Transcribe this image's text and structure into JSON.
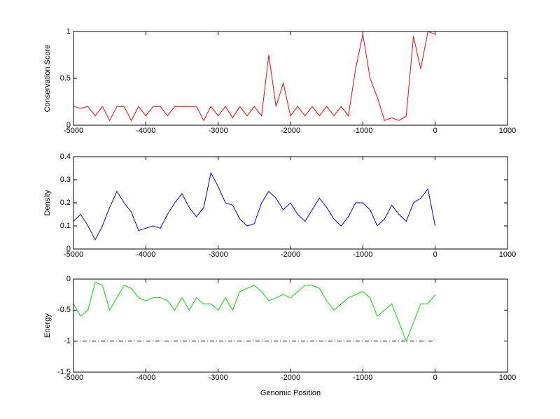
{
  "chart_data": [
    {
      "type": "line",
      "ylabel": "Conservation Score",
      "x": [
        -5000,
        -4900,
        -4800,
        -4700,
        -4600,
        -4500,
        -4400,
        -4300,
        -4200,
        -4100,
        -4000,
        -3900,
        -3800,
        -3700,
        -3600,
        -3500,
        -3400,
        -3300,
        -3200,
        -3100,
        -3000,
        -2900,
        -2800,
        -2700,
        -2600,
        -2500,
        -2400,
        -2300,
        -2200,
        -2100,
        -2000,
        -1900,
        -1800,
        -1700,
        -1600,
        -1500,
        -1400,
        -1300,
        -1200,
        -1100,
        -1000,
        -900,
        -800,
        -700,
        -600,
        -500,
        -400,
        -300,
        -200,
        -100,
        0
      ],
      "series": [
        {
          "color": "#ff0000",
          "values": [
            0.2,
            0.18,
            0.2,
            0.1,
            0.2,
            0.05,
            0.2,
            0.2,
            0.05,
            0.2,
            0.1,
            0.2,
            0.2,
            0.1,
            0.2,
            0.2,
            0.2,
            0.2,
            0.05,
            0.2,
            0.1,
            0.2,
            0.08,
            0.2,
            0.1,
            0.2,
            0.1,
            0.75,
            0.2,
            0.45,
            0.1,
            0.2,
            0.1,
            0.2,
            0.1,
            0.2,
            0.1,
            0.2,
            0.1,
            0.6,
            0.97,
            0.5,
            0.3,
            0.05,
            0.08,
            0.05,
            0.1,
            0.95,
            0.6,
            1,
            0.97
          ]
        }
      ],
      "xlim": [
        -5000,
        1000
      ],
      "xticks": [
        -5000,
        -4000,
        -3000,
        -2000,
        -1000,
        0,
        1000
      ],
      "ylim": [
        0,
        1
      ],
      "yticks": [
        0,
        0.5,
        1
      ]
    },
    {
      "type": "line",
      "ylabel": "Density",
      "x": [
        -5000,
        -4900,
        -4800,
        -4700,
        -4600,
        -4500,
        -4400,
        -4300,
        -4200,
        -4100,
        -4000,
        -3900,
        -3800,
        -3700,
        -3600,
        -3500,
        -3400,
        -3300,
        -3200,
        -3100,
        -3000,
        -2900,
        -2800,
        -2700,
        -2600,
        -2500,
        -2400,
        -2300,
        -2200,
        -2100,
        -2000,
        -1900,
        -1800,
        -1700,
        -1600,
        -1500,
        -1400,
        -1300,
        -1200,
        -1100,
        -1000,
        -900,
        -800,
        -700,
        -600,
        -500,
        -400,
        -300,
        -200,
        -100,
        0
      ],
      "series": [
        {
          "color": "#0000cc",
          "values": [
            0.12,
            0.15,
            0.1,
            0.04,
            0.1,
            0.18,
            0.25,
            0.2,
            0.16,
            0.08,
            0.09,
            0.1,
            0.09,
            0.15,
            0.2,
            0.24,
            0.18,
            0.14,
            0.18,
            0.33,
            0.27,
            0.2,
            0.19,
            0.13,
            0.1,
            0.11,
            0.2,
            0.25,
            0.22,
            0.17,
            0.2,
            0.15,
            0.12,
            0.17,
            0.22,
            0.18,
            0.13,
            0.1,
            0.14,
            0.2,
            0.2,
            0.17,
            0.1,
            0.13,
            0.19,
            0.15,
            0.12,
            0.2,
            0.22,
            0.26,
            0.1
          ]
        }
      ],
      "xlim": [
        -5000,
        1000
      ],
      "xticks": [
        -5000,
        -4000,
        -3000,
        -2000,
        -1000,
        0,
        1000
      ],
      "ylim": [
        0,
        0.4
      ],
      "yticks": [
        0,
        0.1,
        0.2,
        0.3,
        0.4
      ]
    },
    {
      "type": "line",
      "ylabel": "Energy",
      "xlabel": "Genomic Position",
      "x": [
        -5000,
        -4900,
        -4800,
        -4700,
        -4600,
        -4500,
        -4400,
        -4300,
        -4200,
        -4100,
        -4000,
        -3900,
        -3800,
        -3700,
        -3600,
        -3500,
        -3400,
        -3300,
        -3200,
        -3100,
        -3000,
        -2900,
        -2800,
        -2700,
        -2600,
        -2500,
        -2400,
        -2300,
        -2200,
        -2100,
        -2000,
        -1900,
        -1800,
        -1700,
        -1600,
        -1500,
        -1400,
        -1300,
        -1200,
        -1100,
        -1000,
        -900,
        -800,
        -700,
        -600,
        -500,
        -400,
        -300,
        -200,
        -100,
        0
      ],
      "series": [
        {
          "color": "#00dd00",
          "values": [
            -0.4,
            -0.6,
            -0.5,
            -0.05,
            -0.1,
            -0.5,
            -0.3,
            -0.1,
            -0.15,
            -0.3,
            -0.35,
            -0.3,
            -0.3,
            -0.35,
            -0.5,
            -0.3,
            -0.5,
            -0.3,
            -0.4,
            -0.4,
            -0.5,
            -0.3,
            -0.5,
            -0.2,
            -0.15,
            -0.1,
            -0.2,
            -0.35,
            -0.3,
            -0.25,
            -0.3,
            -0.2,
            -0.1,
            -0.1,
            -0.15,
            -0.35,
            -0.5,
            -0.4,
            -0.3,
            -0.25,
            -0.2,
            -0.3,
            -0.6,
            -0.5,
            -0.4,
            -0.7,
            -1.0,
            -0.7,
            -0.4,
            -0.4,
            -0.25
          ]
        },
        {
          "color": "#000000",
          "dash": "dash-dot",
          "x": [
            -5000,
            0
          ],
          "values": [
            -1,
            -1
          ]
        }
      ],
      "xlim": [
        -5000,
        1000
      ],
      "xticks": [
        -5000,
        -4000,
        -3000,
        -2000,
        -1000,
        0,
        1000
      ],
      "ylim": [
        -1.5,
        0
      ],
      "yticks": [
        -1.5,
        -1,
        -0.5,
        0
      ]
    }
  ]
}
